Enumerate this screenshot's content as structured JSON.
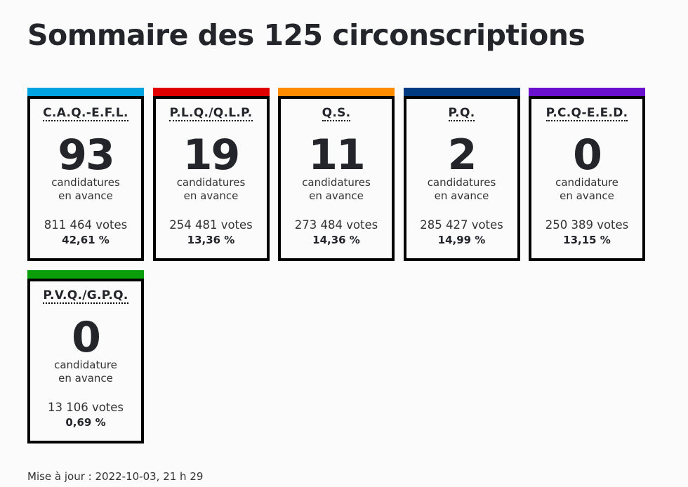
{
  "title": "Sommaire des 125 circonscriptions",
  "parties": [
    {
      "name": "C.A.Q.-E.F.L.",
      "seats": "93",
      "label_line1": "candidatures",
      "label_line2": "en avance",
      "votes": "811 464 votes",
      "percent": "42,61 %",
      "color": "#00a3e0"
    },
    {
      "name": "P.L.Q./Q.L.P.",
      "seats": "19",
      "label_line1": "candidatures",
      "label_line2": "en avance",
      "votes": "254 481 votes",
      "percent": "13,36 %",
      "color": "#e10000"
    },
    {
      "name": "Q.S.",
      "seats": "11",
      "label_line1": "candidatures",
      "label_line2": "en avance",
      "votes": "273 484 votes",
      "percent": "14,36 %",
      "color": "#ff8c00"
    },
    {
      "name": "P.Q.",
      "seats": "2",
      "label_line1": "candidatures",
      "label_line2": "en avance",
      "votes": "285 427 votes",
      "percent": "14,99 %",
      "color": "#003a80"
    },
    {
      "name": "P.C.Q-E.E.D.",
      "seats": "0",
      "label_line1": "candidature",
      "label_line2": "en avance",
      "votes": "250 389 votes",
      "percent": "13,15 %",
      "color": "#6a11cf"
    },
    {
      "name": "P.V.Q./G.P.Q.",
      "seats": "0",
      "label_line1": "candidature",
      "label_line2": "en avance",
      "votes": "13 106 votes",
      "percent": "0,69 %",
      "color": "#0a9e0a"
    }
  ],
  "footer": "Mise à jour : 2022-10-03, 21 h 29"
}
